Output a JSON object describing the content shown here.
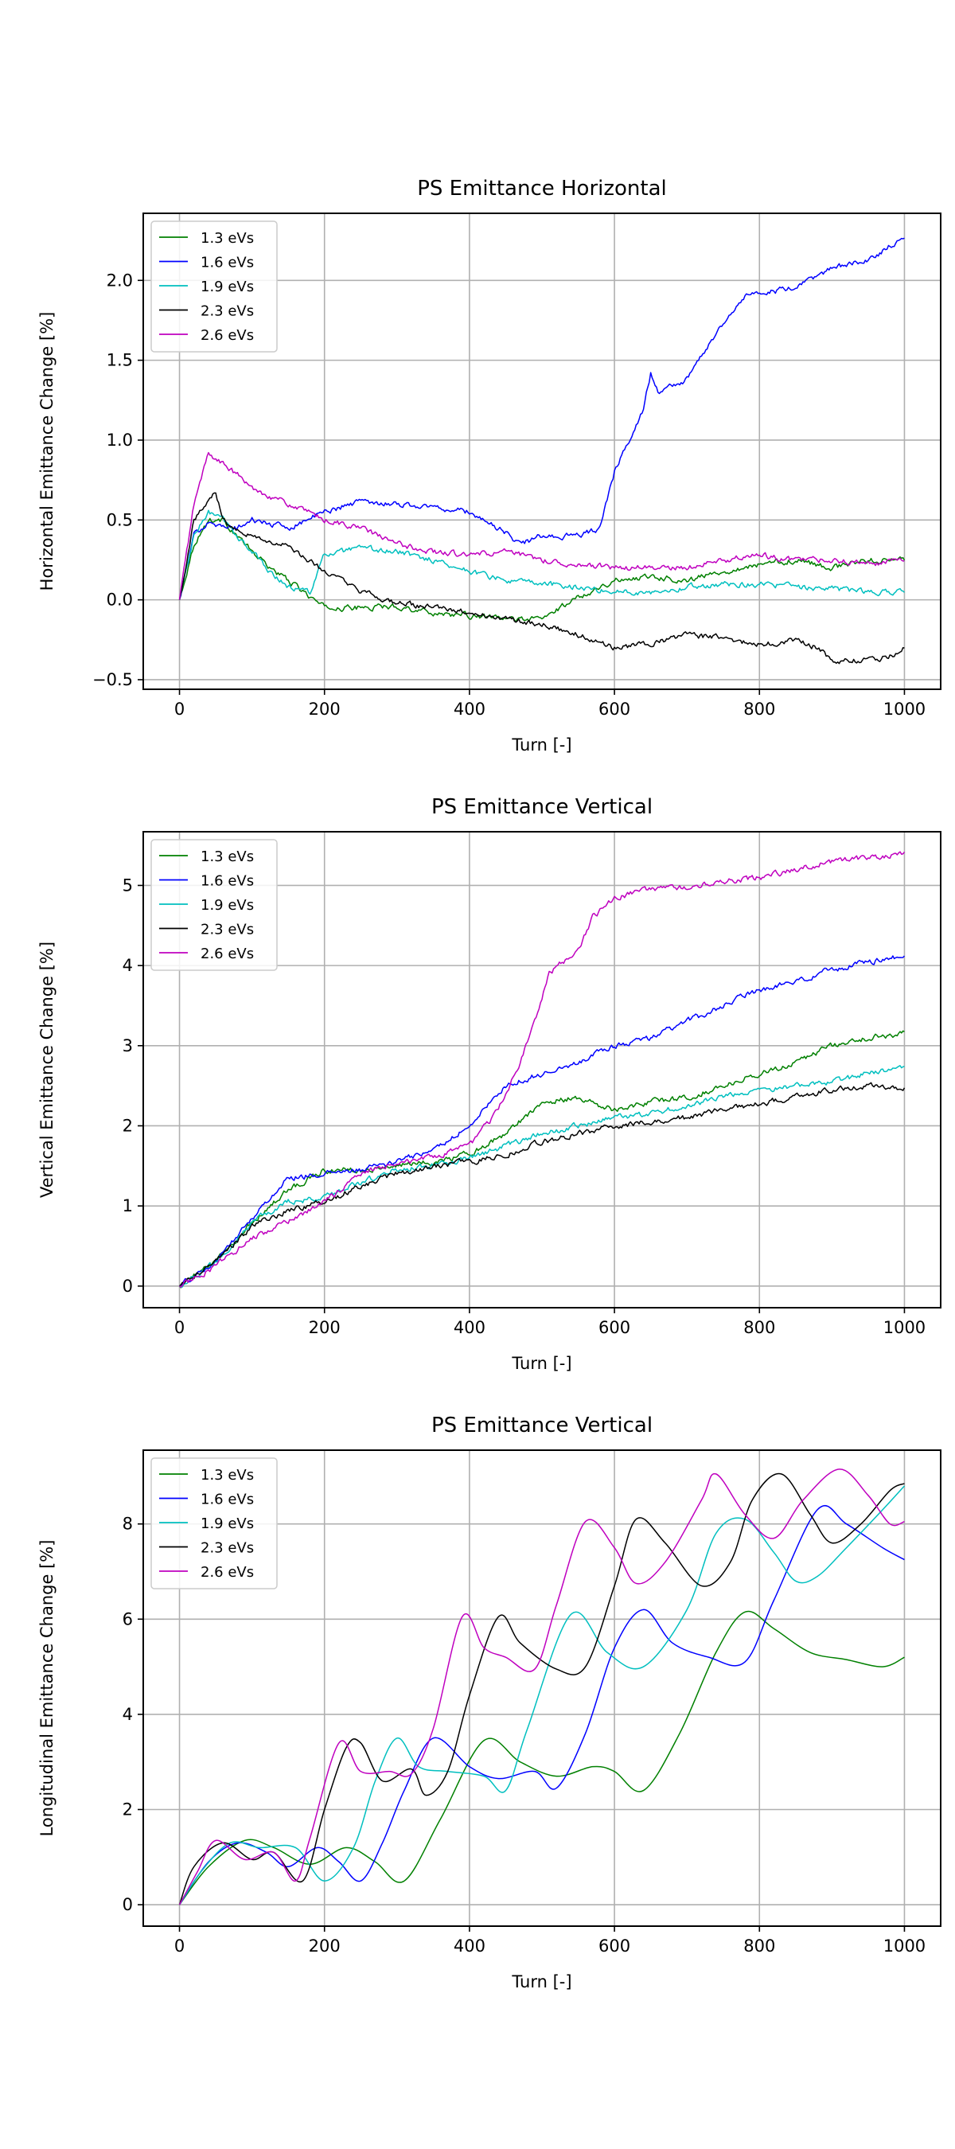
{
  "legend_labels": [
    "1.3 eVs",
    "1.6 eVs",
    "1.9 eVs",
    "2.3 eVs",
    "2.6 eVs"
  ],
  "series_colors": [
    "#008000",
    "#0000ff",
    "#00bfbf",
    "#000000",
    "#bf00bf"
  ],
  "chart_data": [
    {
      "type": "line",
      "title": "PS Emittance Horizontal",
      "xlabel": "Turn [-]",
      "ylabel": "Horizontal Emittance Change [%]",
      "xlim": [
        -50,
        1050
      ],
      "ylim": [
        -0.56,
        2.42
      ],
      "xticks": [
        0,
        200,
        400,
        600,
        800,
        1000
      ],
      "yticks": [
        -0.5,
        0.0,
        0.5,
        1.0,
        1.5,
        2.0
      ],
      "ytick_labels": [
        "−0.5",
        "0.0",
        "0.5",
        "1.0",
        "1.5",
        "2.0"
      ],
      "grid": true,
      "legend_position": "upper-left",
      "noise": 0.03,
      "series": [
        {
          "name": "1.3 eVs",
          "x": [
            0,
            20,
            40,
            60,
            80,
            100,
            120,
            150,
            180,
            200,
            250,
            300,
            350,
            400,
            450,
            500,
            550,
            600,
            650,
            700,
            750,
            800,
            850,
            900,
            950,
            1000
          ],
          "y": [
            0.0,
            0.35,
            0.5,
            0.5,
            0.4,
            0.3,
            0.22,
            0.12,
            0.02,
            -0.05,
            -0.05,
            -0.04,
            -0.08,
            -0.1,
            -0.12,
            -0.12,
            0.02,
            0.12,
            0.15,
            0.12,
            0.18,
            0.22,
            0.25,
            0.2,
            0.25,
            0.25
          ]
        },
        {
          "name": "1.6 eVs",
          "x": [
            0,
            20,
            40,
            60,
            80,
            100,
            150,
            200,
            250,
            300,
            350,
            400,
            450,
            470,
            500,
            550,
            580,
            600,
            620,
            640,
            650,
            660,
            700,
            730,
            760,
            780,
            800,
            850,
            900,
            950,
            1000
          ],
          "y": [
            0.0,
            0.4,
            0.5,
            0.45,
            0.45,
            0.5,
            0.45,
            0.55,
            0.62,
            0.6,
            0.58,
            0.55,
            0.42,
            0.35,
            0.4,
            0.4,
            0.45,
            0.8,
            1.0,
            1.2,
            1.42,
            1.3,
            1.38,
            1.6,
            1.8,
            1.9,
            1.92,
            1.95,
            2.08,
            2.12,
            2.28
          ]
        },
        {
          "name": "1.9 eVs",
          "x": [
            0,
            20,
            40,
            60,
            80,
            100,
            120,
            150,
            180,
            200,
            250,
            300,
            350,
            400,
            450,
            500,
            550,
            600,
            650,
            700,
            750,
            800,
            850,
            900,
            950,
            1000
          ],
          "y": [
            0.0,
            0.4,
            0.55,
            0.5,
            0.4,
            0.3,
            0.2,
            0.08,
            0.05,
            0.28,
            0.32,
            0.3,
            0.25,
            0.18,
            0.12,
            0.1,
            0.08,
            0.05,
            0.05,
            0.08,
            0.1,
            0.1,
            0.08,
            0.07,
            0.05,
            0.05
          ]
        },
        {
          "name": "2.3 eVs",
          "x": [
            0,
            20,
            40,
            50,
            60,
            80,
            100,
            150,
            200,
            250,
            300,
            350,
            400,
            450,
            500,
            550,
            600,
            650,
            700,
            750,
            800,
            850,
            880,
            900,
            950,
            980,
            1000
          ],
          "y": [
            0.0,
            0.5,
            0.62,
            0.68,
            0.5,
            0.45,
            0.4,
            0.33,
            0.18,
            0.05,
            -0.02,
            -0.05,
            -0.08,
            -0.12,
            -0.15,
            -0.22,
            -0.3,
            -0.28,
            -0.22,
            -0.24,
            -0.28,
            -0.25,
            -0.3,
            -0.38,
            -0.38,
            -0.35,
            -0.3
          ]
        },
        {
          "name": "2.6 eVs",
          "x": [
            0,
            20,
            40,
            60,
            80,
            100,
            150,
            200,
            250,
            300,
            350,
            400,
            450,
            500,
            550,
            600,
            650,
            700,
            750,
            800,
            850,
            900,
            950,
            1000
          ],
          "y": [
            0.0,
            0.6,
            0.92,
            0.85,
            0.78,
            0.7,
            0.6,
            0.5,
            0.45,
            0.35,
            0.3,
            0.28,
            0.3,
            0.25,
            0.22,
            0.2,
            0.2,
            0.2,
            0.25,
            0.28,
            0.25,
            0.25,
            0.22,
            0.25
          ]
        }
      ]
    },
    {
      "type": "line",
      "title": "PS Emittance Vertical",
      "xlabel": "Turn [-]",
      "ylabel": "Vertical Emittance Change [%]",
      "xlim": [
        -50,
        1050
      ],
      "ylim": [
        -0.27,
        5.67
      ],
      "xticks": [
        0,
        200,
        400,
        600,
        800,
        1000
      ],
      "yticks": [
        0,
        1,
        2,
        3,
        4,
        5
      ],
      "ytick_labels": [
        "0",
        "1",
        "2",
        "3",
        "4",
        "5"
      ],
      "grid": true,
      "legend_position": "upper-left",
      "noise": 0.03,
      "series": [
        {
          "name": "1.3 eVs",
          "x": [
            0,
            50,
            100,
            150,
            200,
            250,
            300,
            350,
            400,
            450,
            500,
            550,
            600,
            650,
            700,
            750,
            800,
            850,
            900,
            950,
            1000
          ],
          "y": [
            0.0,
            0.3,
            0.8,
            1.2,
            1.45,
            1.45,
            1.5,
            1.55,
            1.65,
            1.9,
            2.3,
            2.35,
            2.2,
            2.3,
            2.35,
            2.5,
            2.65,
            2.8,
            3.0,
            3.1,
            3.15
          ]
        },
        {
          "name": "1.6 eVs",
          "x": [
            0,
            50,
            100,
            150,
            200,
            250,
            300,
            350,
            400,
            450,
            500,
            550,
            600,
            650,
            700,
            750,
            800,
            850,
            900,
            950,
            1000
          ],
          "y": [
            0.0,
            0.3,
            0.85,
            1.35,
            1.4,
            1.45,
            1.55,
            1.7,
            2.0,
            2.5,
            2.65,
            2.8,
            3.0,
            3.1,
            3.3,
            3.5,
            3.7,
            3.8,
            3.95,
            4.05,
            4.12
          ]
        },
        {
          "name": "1.9 eVs",
          "x": [
            0,
            50,
            100,
            150,
            200,
            250,
            300,
            350,
            400,
            450,
            500,
            550,
            600,
            650,
            700,
            750,
            800,
            850,
            900,
            950,
            1000
          ],
          "y": [
            0.0,
            0.3,
            0.8,
            1.05,
            1.1,
            1.3,
            1.45,
            1.5,
            1.6,
            1.75,
            1.9,
            2.0,
            2.1,
            2.15,
            2.25,
            2.35,
            2.45,
            2.5,
            2.55,
            2.65,
            2.72
          ]
        },
        {
          "name": "2.3 eVs",
          "x": [
            0,
            50,
            100,
            150,
            200,
            250,
            300,
            350,
            400,
            450,
            500,
            550,
            600,
            650,
            700,
            750,
            800,
            850,
            900,
            950,
            1000
          ],
          "y": [
            0.0,
            0.3,
            0.75,
            0.95,
            1.05,
            1.25,
            1.4,
            1.5,
            1.55,
            1.65,
            1.8,
            1.9,
            2.0,
            2.05,
            2.1,
            2.2,
            2.28,
            2.35,
            2.45,
            2.5,
            2.48
          ]
        },
        {
          "name": "2.6 eVs",
          "x": [
            0,
            50,
            100,
            150,
            200,
            250,
            300,
            350,
            400,
            440,
            470,
            490,
            510,
            550,
            570,
            600,
            650,
            700,
            750,
            800,
            850,
            900,
            950,
            1000
          ],
          "y": [
            0.0,
            0.25,
            0.6,
            0.8,
            1.05,
            1.4,
            1.55,
            1.6,
            1.75,
            2.2,
            2.8,
            3.3,
            3.9,
            4.2,
            4.6,
            4.85,
            4.95,
            4.98,
            5.05,
            5.1,
            5.2,
            5.3,
            5.35,
            5.4
          ]
        }
      ]
    },
    {
      "type": "line",
      "title": "PS Emittance Vertical",
      "xlabel": "Turn [-]",
      "ylabel": "Longitudinal Emittance Change [%]",
      "xlim": [
        -50,
        1050
      ],
      "ylim": [
        -0.45,
        9.55
      ],
      "xticks": [
        0,
        200,
        400,
        600,
        800,
        1000
      ],
      "yticks": [
        0,
        2,
        4,
        6,
        8
      ],
      "ytick_labels": [
        "0",
        "2",
        "4",
        "6",
        "8"
      ],
      "grid": true,
      "legend_position": "upper-left",
      "smooth": true,
      "series": [
        {
          "name": "1.3 eVs",
          "x": [
            0,
            40,
            90,
            130,
            180,
            230,
            270,
            310,
            360,
            420,
            470,
            520,
            570,
            600,
            640,
            690,
            740,
            780,
            820,
            870,
            920,
            970,
            1000
          ],
          "y": [
            0.0,
            0.8,
            1.35,
            1.2,
            0.85,
            1.2,
            0.9,
            0.5,
            1.8,
            3.45,
            3.0,
            2.7,
            2.9,
            2.8,
            2.4,
            3.6,
            5.3,
            6.15,
            5.8,
            5.3,
            5.15,
            5.0,
            5.2
          ]
        },
        {
          "name": "1.6 eVs",
          "x": [
            0,
            40,
            80,
            120,
            150,
            190,
            220,
            250,
            280,
            310,
            350,
            400,
            440,
            490,
            520,
            560,
            600,
            640,
            680,
            730,
            780,
            820,
            880,
            920,
            970,
            1000
          ],
          "y": [
            0.0,
            0.9,
            1.3,
            1.1,
            0.8,
            1.2,
            0.9,
            0.5,
            1.3,
            2.4,
            3.5,
            2.9,
            2.65,
            2.8,
            2.45,
            3.6,
            5.4,
            6.2,
            5.5,
            5.2,
            5.1,
            6.4,
            8.3,
            8.0,
            7.5,
            7.25
          ]
        },
        {
          "name": "1.9 eVs",
          "x": [
            0,
            30,
            70,
            110,
            160,
            200,
            240,
            270,
            300,
            330,
            370,
            420,
            450,
            480,
            540,
            590,
            640,
            700,
            740,
            780,
            820,
            850,
            880,
            920,
            970,
            1000
          ],
          "y": [
            0.0,
            0.7,
            1.3,
            1.2,
            1.2,
            0.5,
            1.2,
            2.6,
            3.5,
            2.9,
            2.8,
            2.7,
            2.4,
            3.7,
            6.1,
            5.3,
            5.0,
            6.2,
            7.8,
            8.1,
            7.4,
            6.8,
            6.9,
            7.5,
            8.3,
            8.8
          ]
        },
        {
          "name": "2.3 eVs",
          "x": [
            0,
            20,
            60,
            100,
            130,
            170,
            200,
            230,
            250,
            280,
            320,
            340,
            370,
            400,
            440,
            470,
            520,
            560,
            600,
            630,
            670,
            720,
            760,
            790,
            830,
            870,
            900,
            940,
            980,
            1000
          ],
          "y": [
            0.0,
            0.8,
            1.3,
            0.95,
            1.1,
            0.5,
            2.0,
            3.3,
            3.4,
            2.6,
            2.85,
            2.3,
            2.8,
            4.4,
            6.05,
            5.5,
            4.95,
            5.0,
            6.7,
            8.1,
            7.6,
            6.7,
            7.2,
            8.5,
            9.05,
            8.2,
            7.6,
            8.0,
            8.7,
            8.85
          ]
        },
        {
          "name": "2.6 eVs",
          "x": [
            0,
            25,
            50,
            90,
            130,
            160,
            180,
            220,
            250,
            290,
            320,
            350,
            390,
            420,
            450,
            490,
            520,
            560,
            600,
            630,
            670,
            720,
            740,
            780,
            820,
            860,
            910,
            950,
            980,
            1000
          ],
          "y": [
            0.0,
            0.7,
            1.35,
            0.95,
            1.1,
            0.5,
            1.4,
            3.4,
            2.8,
            2.8,
            2.75,
            3.7,
            6.05,
            5.4,
            5.2,
            4.95,
            6.3,
            8.05,
            7.5,
            6.75,
            7.2,
            8.5,
            9.05,
            8.2,
            7.7,
            8.5,
            9.15,
            8.6,
            8.0,
            8.05
          ]
        }
      ]
    }
  ]
}
